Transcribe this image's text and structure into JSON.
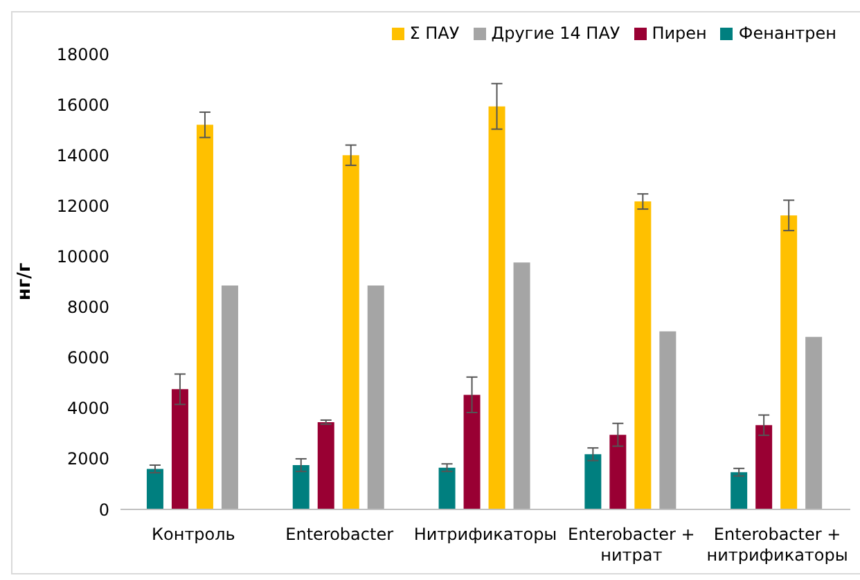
{
  "chart_data": {
    "type": "bar",
    "ylabel": "нг/г",
    "categories": [
      "Контроль",
      "Enterobacter",
      "Нитрификаторы",
      "Enterobacter + нитрат",
      "Enterobacter + нитрификаторы"
    ],
    "series": [
      {
        "name": "Фенантрен",
        "color": "#007f7f",
        "values": [
          1600,
          1750,
          1650,
          2180,
          1470
        ],
        "errors": [
          150,
          250,
          150,
          250,
          150
        ]
      },
      {
        "name": "Пирен",
        "color": "#990033",
        "values": [
          4750,
          3450,
          4530,
          2950,
          3330
        ],
        "errors": [
          600,
          80,
          700,
          450,
          400
        ]
      },
      {
        "name": "Σ ПАУ",
        "color": "#ffc000",
        "values": [
          15200,
          14000,
          15930,
          12170,
          11620
        ],
        "errors": [
          500,
          400,
          900,
          300,
          600
        ]
      },
      {
        "name": "Другие 14 ПАУ",
        "color": "#a5a5a5",
        "values": [
          8850,
          8850,
          9760,
          7040,
          6820
        ]
      }
    ],
    "ylim": [
      0,
      18000
    ],
    "yticks": [
      0,
      2000,
      4000,
      6000,
      8000,
      10000,
      12000,
      14000,
      16000,
      18000
    ],
    "grid": false,
    "legend": "top right"
  }
}
